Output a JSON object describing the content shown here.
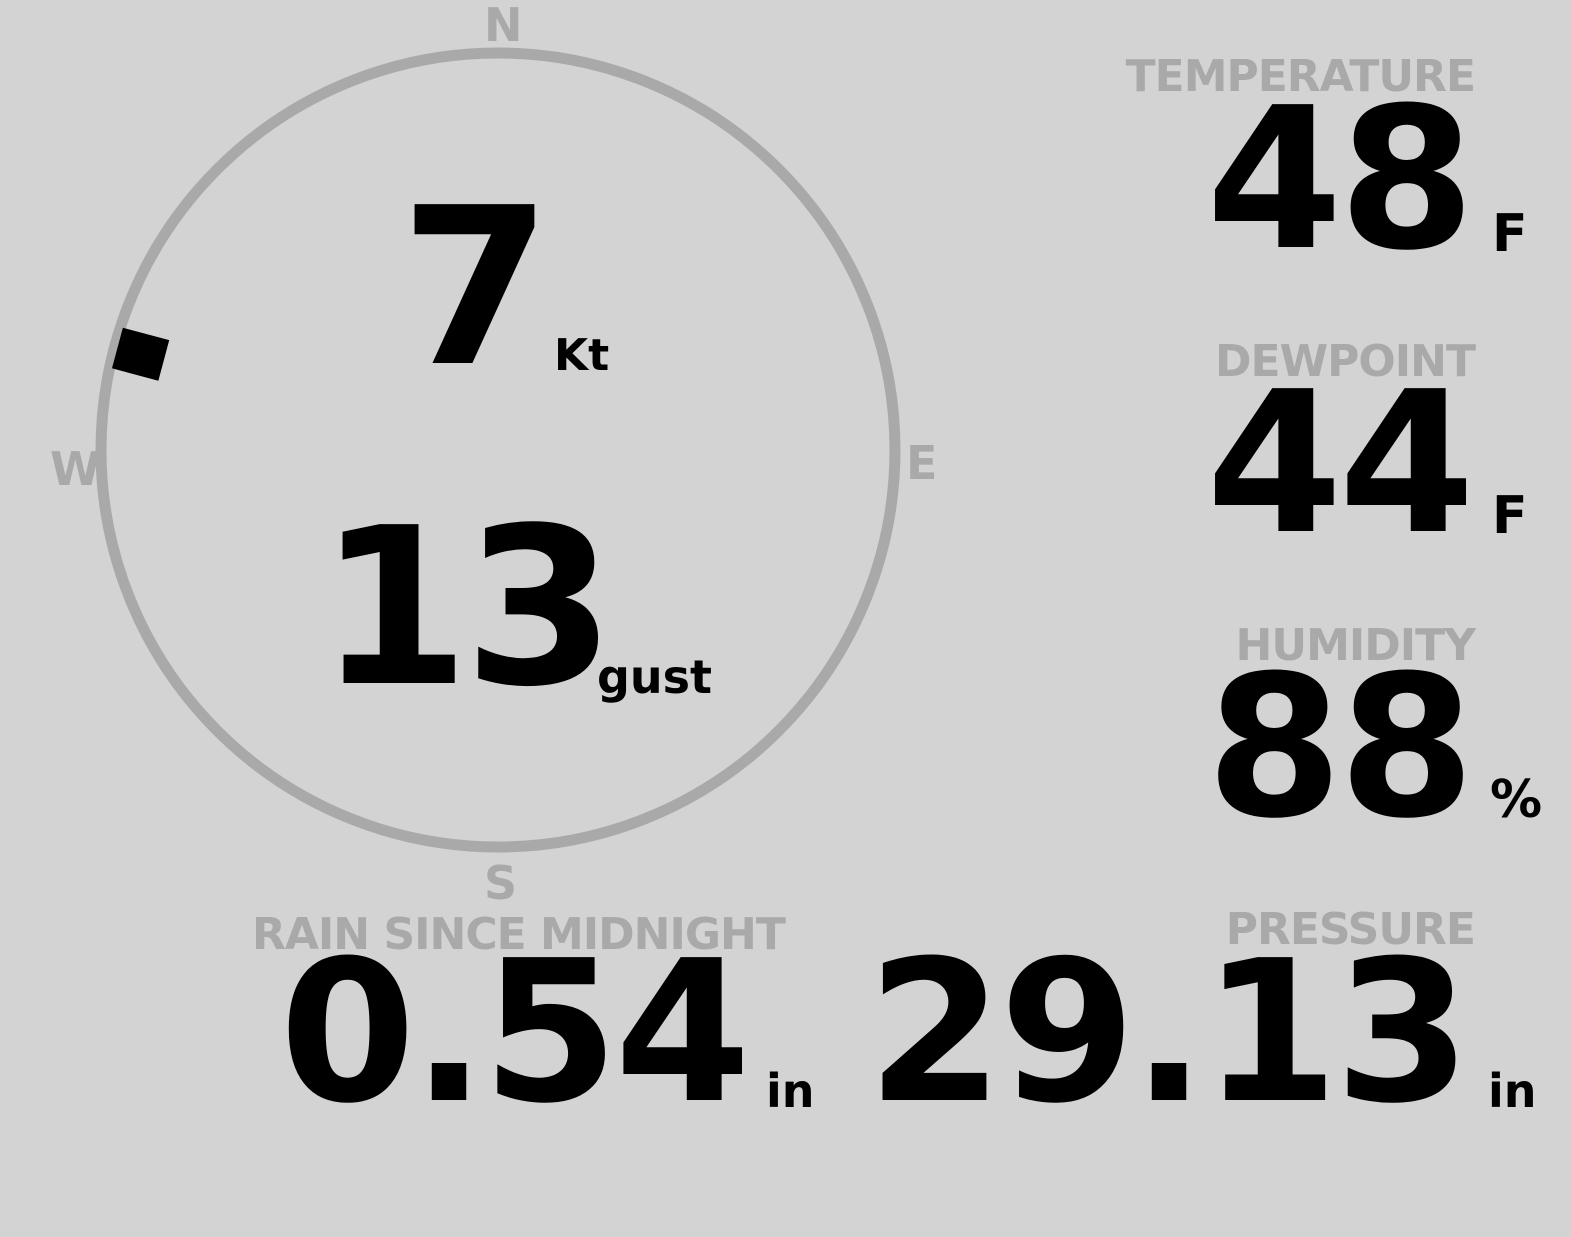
{
  "colors": {
    "background": "#d3d3d3",
    "muted": "#a9a9a9",
    "value": "#000000"
  },
  "wind": {
    "cardinals": {
      "n": "N",
      "e": "E",
      "s": "S",
      "w": "W"
    },
    "direction_deg": 285,
    "speed": "7",
    "speed_unit": "Kt",
    "gust": "13",
    "gust_unit": "gust"
  },
  "temperature": {
    "label": "TEMPERATURE",
    "value": "48",
    "unit": "F"
  },
  "dewpoint": {
    "label": "DEWPOINT",
    "value": "44",
    "unit": "F"
  },
  "humidity": {
    "label": "HUMIDITY",
    "value": "88",
    "unit": "%"
  },
  "rain": {
    "label": "RAIN SINCE MIDNIGHT",
    "value": "0.54",
    "unit": "in"
  },
  "pressure": {
    "label": "PRESSURE",
    "value": "29.13",
    "unit": "in"
  }
}
